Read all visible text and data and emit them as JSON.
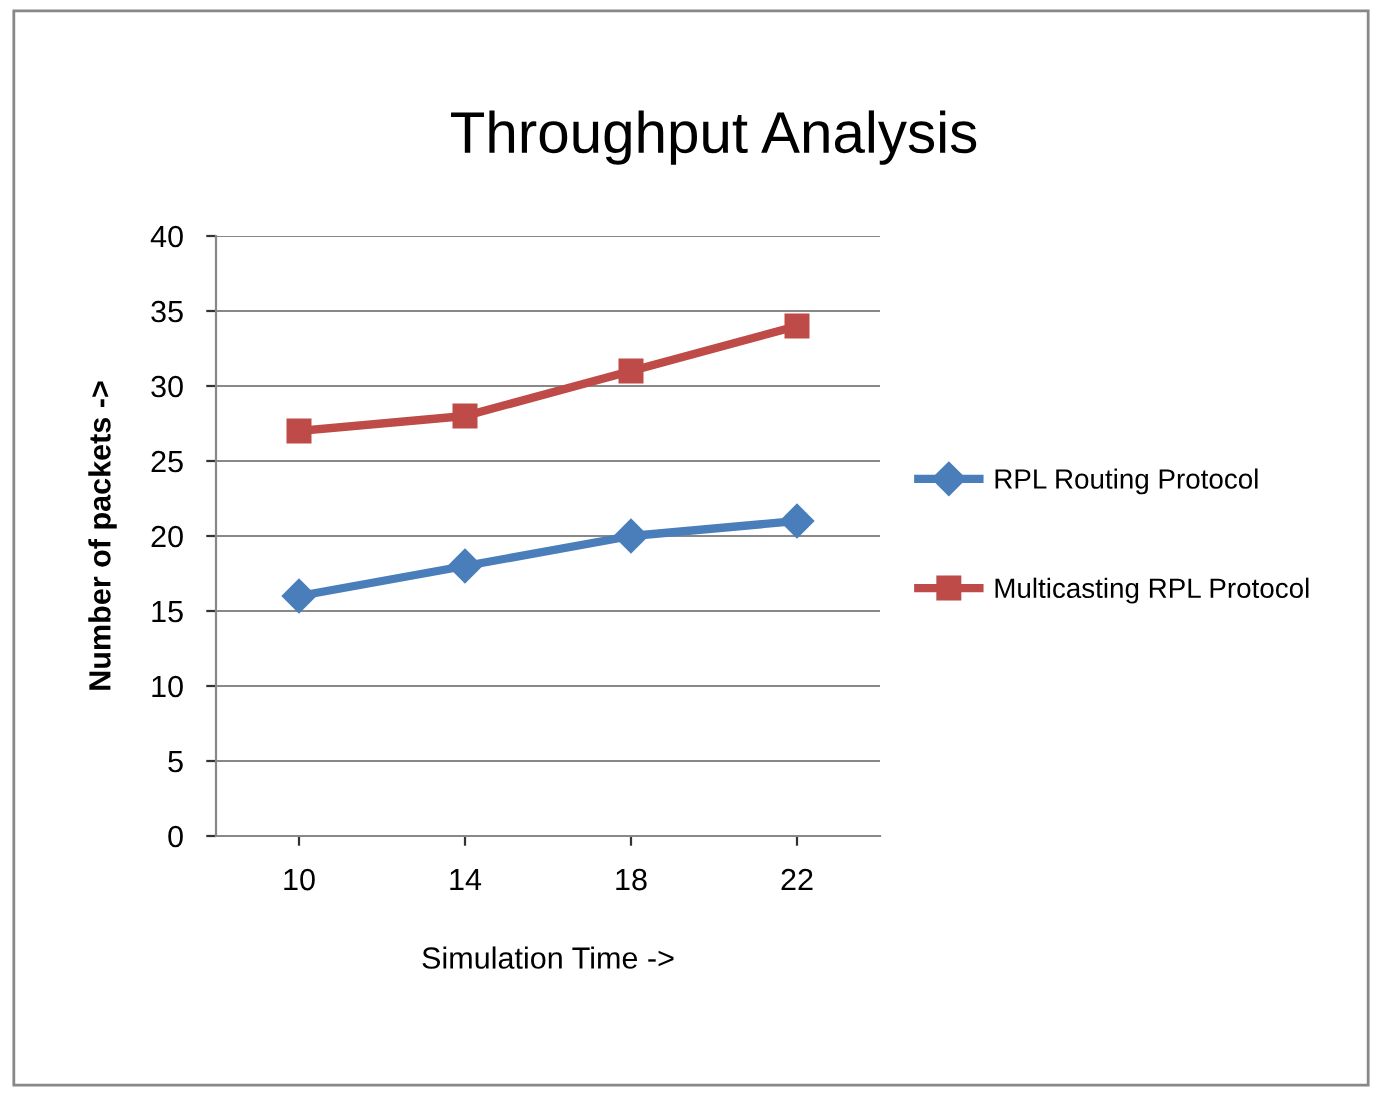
{
  "chart_data": {
    "type": "line",
    "title": "Throughput Analysis",
    "xlabel": "Simulation Time ->",
    "ylabel": "Number of packets ->",
    "categories": [
      "10",
      "14",
      "18",
      "22"
    ],
    "series": [
      {
        "name": "RPL Routing Protocol",
        "color": "#4a7ebb",
        "values": [
          16,
          18,
          20,
          21
        ],
        "marker": "diamond"
      },
      {
        "name": "Multicasting RPL Protocol",
        "color": "#be4b48",
        "values": [
          27,
          28,
          31,
          34
        ],
        "marker": "square"
      }
    ],
    "ylim": [
      0,
      40
    ],
    "yticks": [
      0,
      5,
      10,
      15,
      20,
      25,
      30,
      35,
      40
    ],
    "grid": "y",
    "legend": "right",
    "line_style": "solid"
  }
}
